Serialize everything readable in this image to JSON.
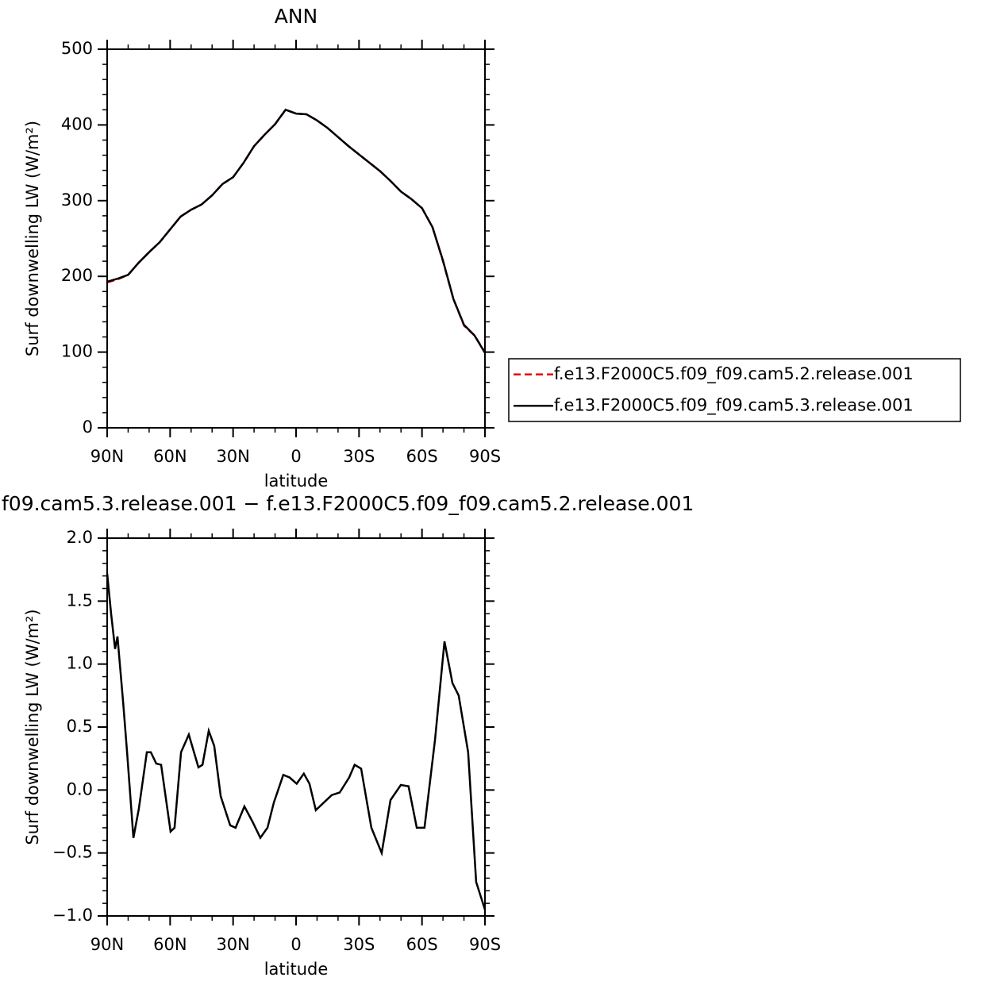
{
  "chart_data": [
    {
      "type": "line",
      "title": "ANN",
      "x_label": "latitude",
      "y_label": "Surf  downwelling LW (W/m²)",
      "x": [
        90,
        85,
        80,
        75,
        70,
        65,
        60,
        55,
        50,
        45,
        40,
        35,
        30,
        25,
        20,
        15,
        10,
        5,
        0,
        -5,
        -10,
        -15,
        -20,
        -25,
        -30,
        -35,
        -40,
        -45,
        -50,
        -55,
        -60,
        -65,
        -70,
        -75,
        -80,
        -85,
        -90
      ],
      "series": [
        {
          "name": "f.e13.F2000C5.f09_f09.cam5.2.release.001",
          "color": "#e00000",
          "dash": true,
          "values": [
            192,
            196,
            202,
            218,
            232,
            245,
            262,
            279,
            288,
            295,
            307,
            322,
            331,
            350,
            372,
            387,
            401,
            420,
            415,
            414,
            406,
            396,
            384,
            372,
            361,
            350,
            339,
            326,
            312,
            302,
            290,
            265,
            220,
            170,
            135,
            122,
            100
          ]
        },
        {
          "name": "f.e13.F2000C5.f09_f09.cam5.3.release.001",
          "color": "#000000",
          "dash": false,
          "values": [
            193,
            197,
            202,
            218,
            232,
            245,
            262,
            279,
            288,
            295,
            307,
            322,
            331,
            350,
            372,
            387,
            401,
            420,
            415,
            414,
            406,
            396,
            384,
            372,
            361,
            350,
            339,
            326,
            312,
            302,
            290,
            265,
            221,
            170,
            136,
            122,
            99
          ]
        }
      ],
      "xlim": [
        90,
        -90
      ],
      "xticks": [
        {
          "value": 90,
          "label": "90N"
        },
        {
          "value": 60,
          "label": "60N"
        },
        {
          "value": 30,
          "label": "30N"
        },
        0,
        {
          "value": -30,
          "label": "30S"
        },
        {
          "value": -60,
          "label": "60S"
        },
        {
          "value": -90,
          "label": "90S"
        }
      ],
      "ylim": [
        0,
        500
      ],
      "yticks": [
        0,
        100,
        200,
        300,
        400,
        500
      ],
      "legend": "right"
    },
    {
      "type": "line",
      "title": "f09.cam5.3.release.001 − f.e13.F2000C5.f09_f09.cam5.2.release.001",
      "x_label": "latitude",
      "y_label": "Surf  downwelling LW (W/m²)",
      "x": [
        90,
        88.1,
        86.2,
        85.1,
        82.4,
        80.5,
        77.5,
        74.9,
        71.1,
        69.2,
        66.6,
        64.3,
        59.8,
        57.9,
        54.8,
        51.1,
        46.5,
        44.6,
        41.6,
        39,
        35.9,
        31.4,
        28.8,
        24.6,
        20.8,
        17,
        13.6,
        10.6,
        6.1,
        3.1,
        -0.3,
        -3.7,
        -6.4,
        -9.4,
        -13.2,
        -17,
        -20.8,
        -25.3,
        -27.9,
        -31,
        -35.9,
        -40.8,
        -45,
        -49.9,
        -53.6,
        -57.5,
        -61.2,
        -66.2,
        -70.7,
        -74.5,
        -77.5,
        -82,
        -85.8,
        -90
      ],
      "series": [
        {
          "color": "#000000",
          "values": [
            1.72,
            1.4,
            1.12,
            1.22,
            0.7,
            0.3,
            -0.38,
            -0.15,
            0.3,
            0.3,
            0.21,
            0.2,
            -0.33,
            -0.3,
            0.3,
            0.44,
            0.18,
            0.2,
            0.47,
            0.35,
            -0.05,
            -0.28,
            -0.3,
            -0.13,
            -0.25,
            -0.38,
            -0.3,
            -0.1,
            0.12,
            0.1,
            0.05,
            0.13,
            0.05,
            -0.16,
            -0.1,
            -0.04,
            -0.02,
            0.1,
            0.2,
            0.17,
            -0.3,
            -0.5,
            -0.08,
            0.04,
            0.03,
            -0.3,
            -0.3,
            0.4,
            1.18,
            0.85,
            0.75,
            0.3,
            -0.73,
            -0.95
          ]
        }
      ],
      "xlim": [
        90,
        -90
      ],
      "xticks": [
        {
          "value": 90,
          "label": "90N"
        },
        {
          "value": 60,
          "label": "60N"
        },
        {
          "value": 30,
          "label": "30N"
        },
        0,
        {
          "value": -30,
          "label": "30S"
        },
        {
          "value": -60,
          "label": "60S"
        },
        {
          "value": -90,
          "label": "90S"
        }
      ],
      "ylim": [
        -1,
        2
      ],
      "yticks": [
        {
          "value": -1,
          "label": "−1.0"
        },
        {
          "value": -0.5,
          "label": "−0.5"
        },
        {
          "value": 0,
          "label": "0.0"
        },
        0.5,
        {
          "value": 1,
          "label": "1.0"
        },
        1.5,
        {
          "value": 2,
          "label": "2.0"
        }
      ]
    }
  ]
}
